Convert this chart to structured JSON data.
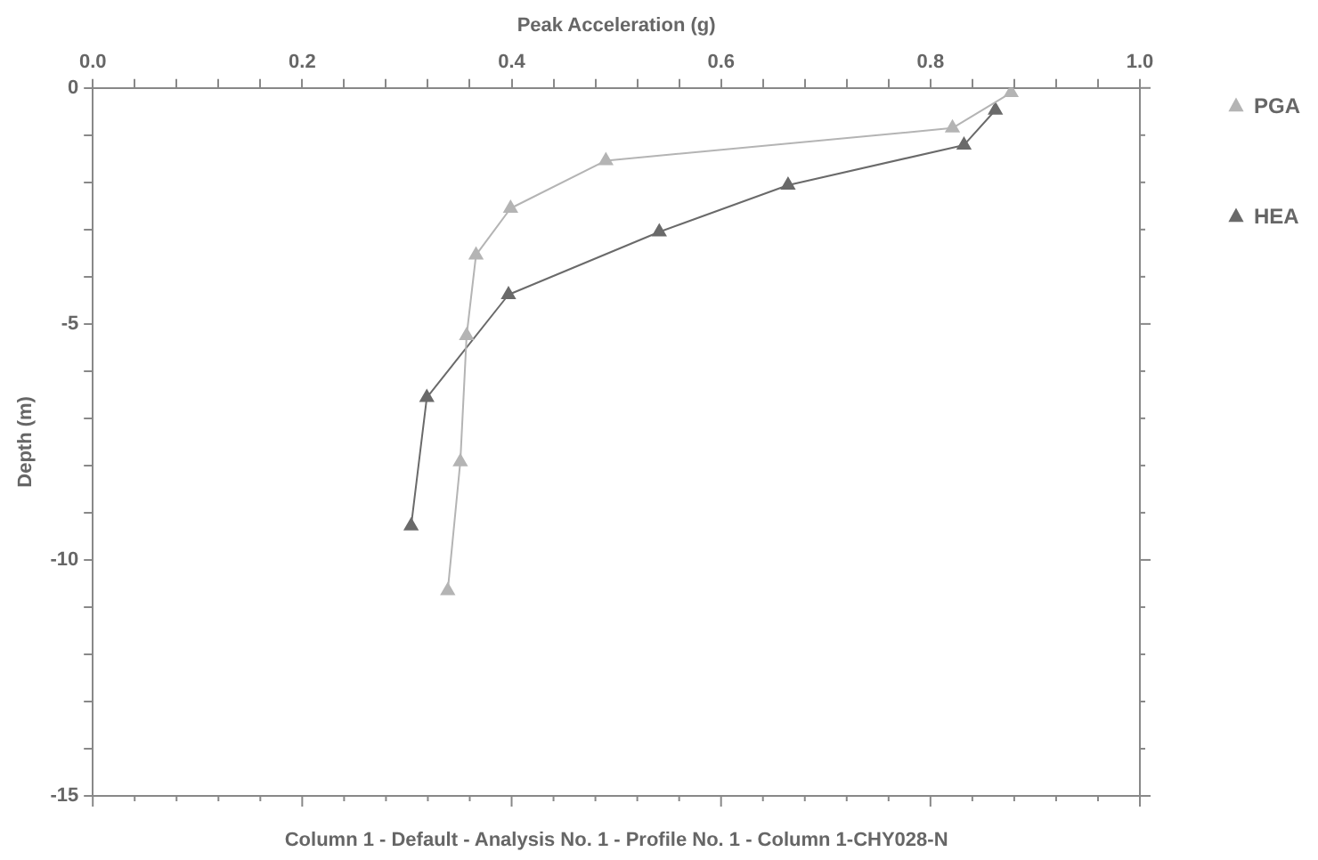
{
  "chart_data": {
    "type": "line",
    "xlabel": "Peak Acceleration (g)",
    "ylabel": "Depth (m)",
    "annotations": [
      "Column 1 - Default - Analysis No. 1 - Profile No. 1 - Column 1-CHY028-N"
    ],
    "xlim": [
      0,
      1
    ],
    "ylim": [
      -15,
      0
    ],
    "xticks": [
      {
        "value": 0,
        "label": "0.0"
      },
      {
        "value": 0.04,
        "label": null
      },
      {
        "value": 0.08,
        "label": null
      },
      {
        "value": 0.12,
        "label": null
      },
      {
        "value": 0.16,
        "label": null
      },
      {
        "value": 0.2,
        "label": "0.2"
      },
      {
        "value": 0.24,
        "label": null
      },
      {
        "value": 0.28,
        "label": null
      },
      {
        "value": 0.32,
        "label": null
      },
      {
        "value": 0.36,
        "label": null
      },
      {
        "value": 0.4,
        "label": "0.4"
      },
      {
        "value": 0.44,
        "label": null
      },
      {
        "value": 0.48,
        "label": null
      },
      {
        "value": 0.52,
        "label": null
      },
      {
        "value": 0.56,
        "label": null
      },
      {
        "value": 0.6,
        "label": "0.6"
      },
      {
        "value": 0.64,
        "label": null
      },
      {
        "value": 0.68,
        "label": null
      },
      {
        "value": 0.72,
        "label": null
      },
      {
        "value": 0.76,
        "label": null
      },
      {
        "value": 0.8,
        "label": "0.8"
      },
      {
        "value": 0.84,
        "label": null
      },
      {
        "value": 0.88,
        "label": null
      },
      {
        "value": 0.92,
        "label": null
      },
      {
        "value": 0.96,
        "label": null
      },
      {
        "value": 1,
        "label": "1.0"
      }
    ],
    "yticks": [
      -15,
      {
        "value": -14,
        "label": null
      },
      {
        "value": -13,
        "label": null
      },
      {
        "value": -12,
        "label": null
      },
      {
        "value": -11,
        "label": null
      },
      -10,
      {
        "value": -9,
        "label": null
      },
      {
        "value": -8,
        "label": null
      },
      {
        "value": -7,
        "label": null
      },
      {
        "value": -6,
        "label": null
      },
      -5,
      {
        "value": -4,
        "label": null
      },
      {
        "value": -3,
        "label": null
      },
      {
        "value": -2,
        "label": null
      },
      {
        "value": -1,
        "label": null
      },
      0
    ],
    "grid": false,
    "legend": "right",
    "marker": "triangle",
    "series": [
      {
        "name": "PGA",
        "color": "#b4b4b4",
        "x": [
          0.877,
          0.821,
          0.49,
          0.399,
          0.366,
          0.357,
          0.351,
          0.339
        ],
        "values": [
          -0.1,
          -0.85,
          -1.54,
          -2.55,
          -3.54,
          -5.25,
          -7.92,
          -10.65
        ]
      },
      {
        "name": "HEA",
        "color": "#6a6a6a",
        "x": [
          0.862,
          0.832,
          0.664,
          0.541,
          0.397,
          0.319,
          0.304
        ],
        "values": [
          -0.47,
          -1.21,
          -2.06,
          -3.05,
          -4.38,
          -6.56,
          -9.28
        ]
      }
    ]
  }
}
